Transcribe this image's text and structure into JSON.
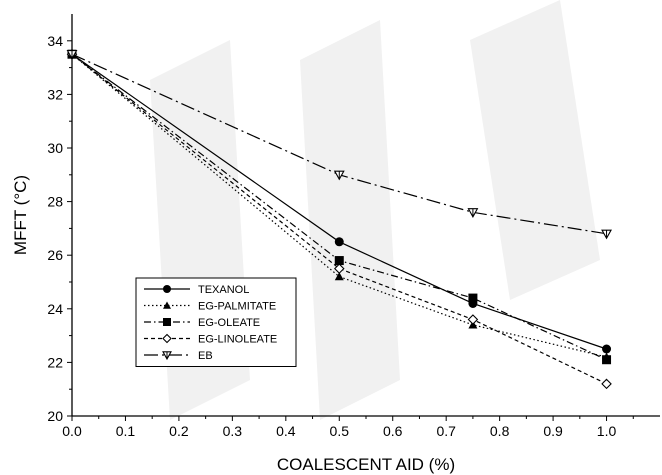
{
  "chart_data": {
    "type": "line",
    "xlabel": "COALESCENT AID (%)",
    "ylabel": "MFFT (°C)",
    "xlim": [
      0.0,
      1.1
    ],
    "ylim": [
      20,
      35
    ],
    "x_ticks": [
      "0.0",
      "0.1",
      "0.2",
      "0.3",
      "0.4",
      "0.5",
      "0.6",
      "0.7",
      "0.8",
      "0.9",
      "1.0"
    ],
    "y_ticks": [
      "20",
      "22",
      "24",
      "26",
      "28",
      "30",
      "32",
      "34"
    ],
    "x": [
      0.0,
      0.5,
      0.75,
      1.0
    ],
    "series": [
      {
        "name": "TEXANOL",
        "values": [
          33.5,
          26.5,
          24.2,
          22.5
        ],
        "marker": "circle",
        "dash": "solid"
      },
      {
        "name": "EG-PALMITATE",
        "values": [
          33.5,
          25.2,
          23.4,
          22.2
        ],
        "marker": "triangle",
        "dash": "dotted"
      },
      {
        "name": "EG-OLEATE",
        "values": [
          33.5,
          25.8,
          24.4,
          22.1
        ],
        "marker": "square",
        "dash": "dashdot"
      },
      {
        "name": "EG-LINOLEATE",
        "values": [
          33.5,
          25.5,
          23.6,
          21.2
        ],
        "marker": "diamond",
        "dash": "dashed"
      },
      {
        "name": "EB",
        "values": [
          33.5,
          29.0,
          27.6,
          26.8
        ],
        "marker": "triangle-down",
        "dash": "longdash"
      }
    ],
    "legend_position": "lower-left",
    "grid": false
  }
}
